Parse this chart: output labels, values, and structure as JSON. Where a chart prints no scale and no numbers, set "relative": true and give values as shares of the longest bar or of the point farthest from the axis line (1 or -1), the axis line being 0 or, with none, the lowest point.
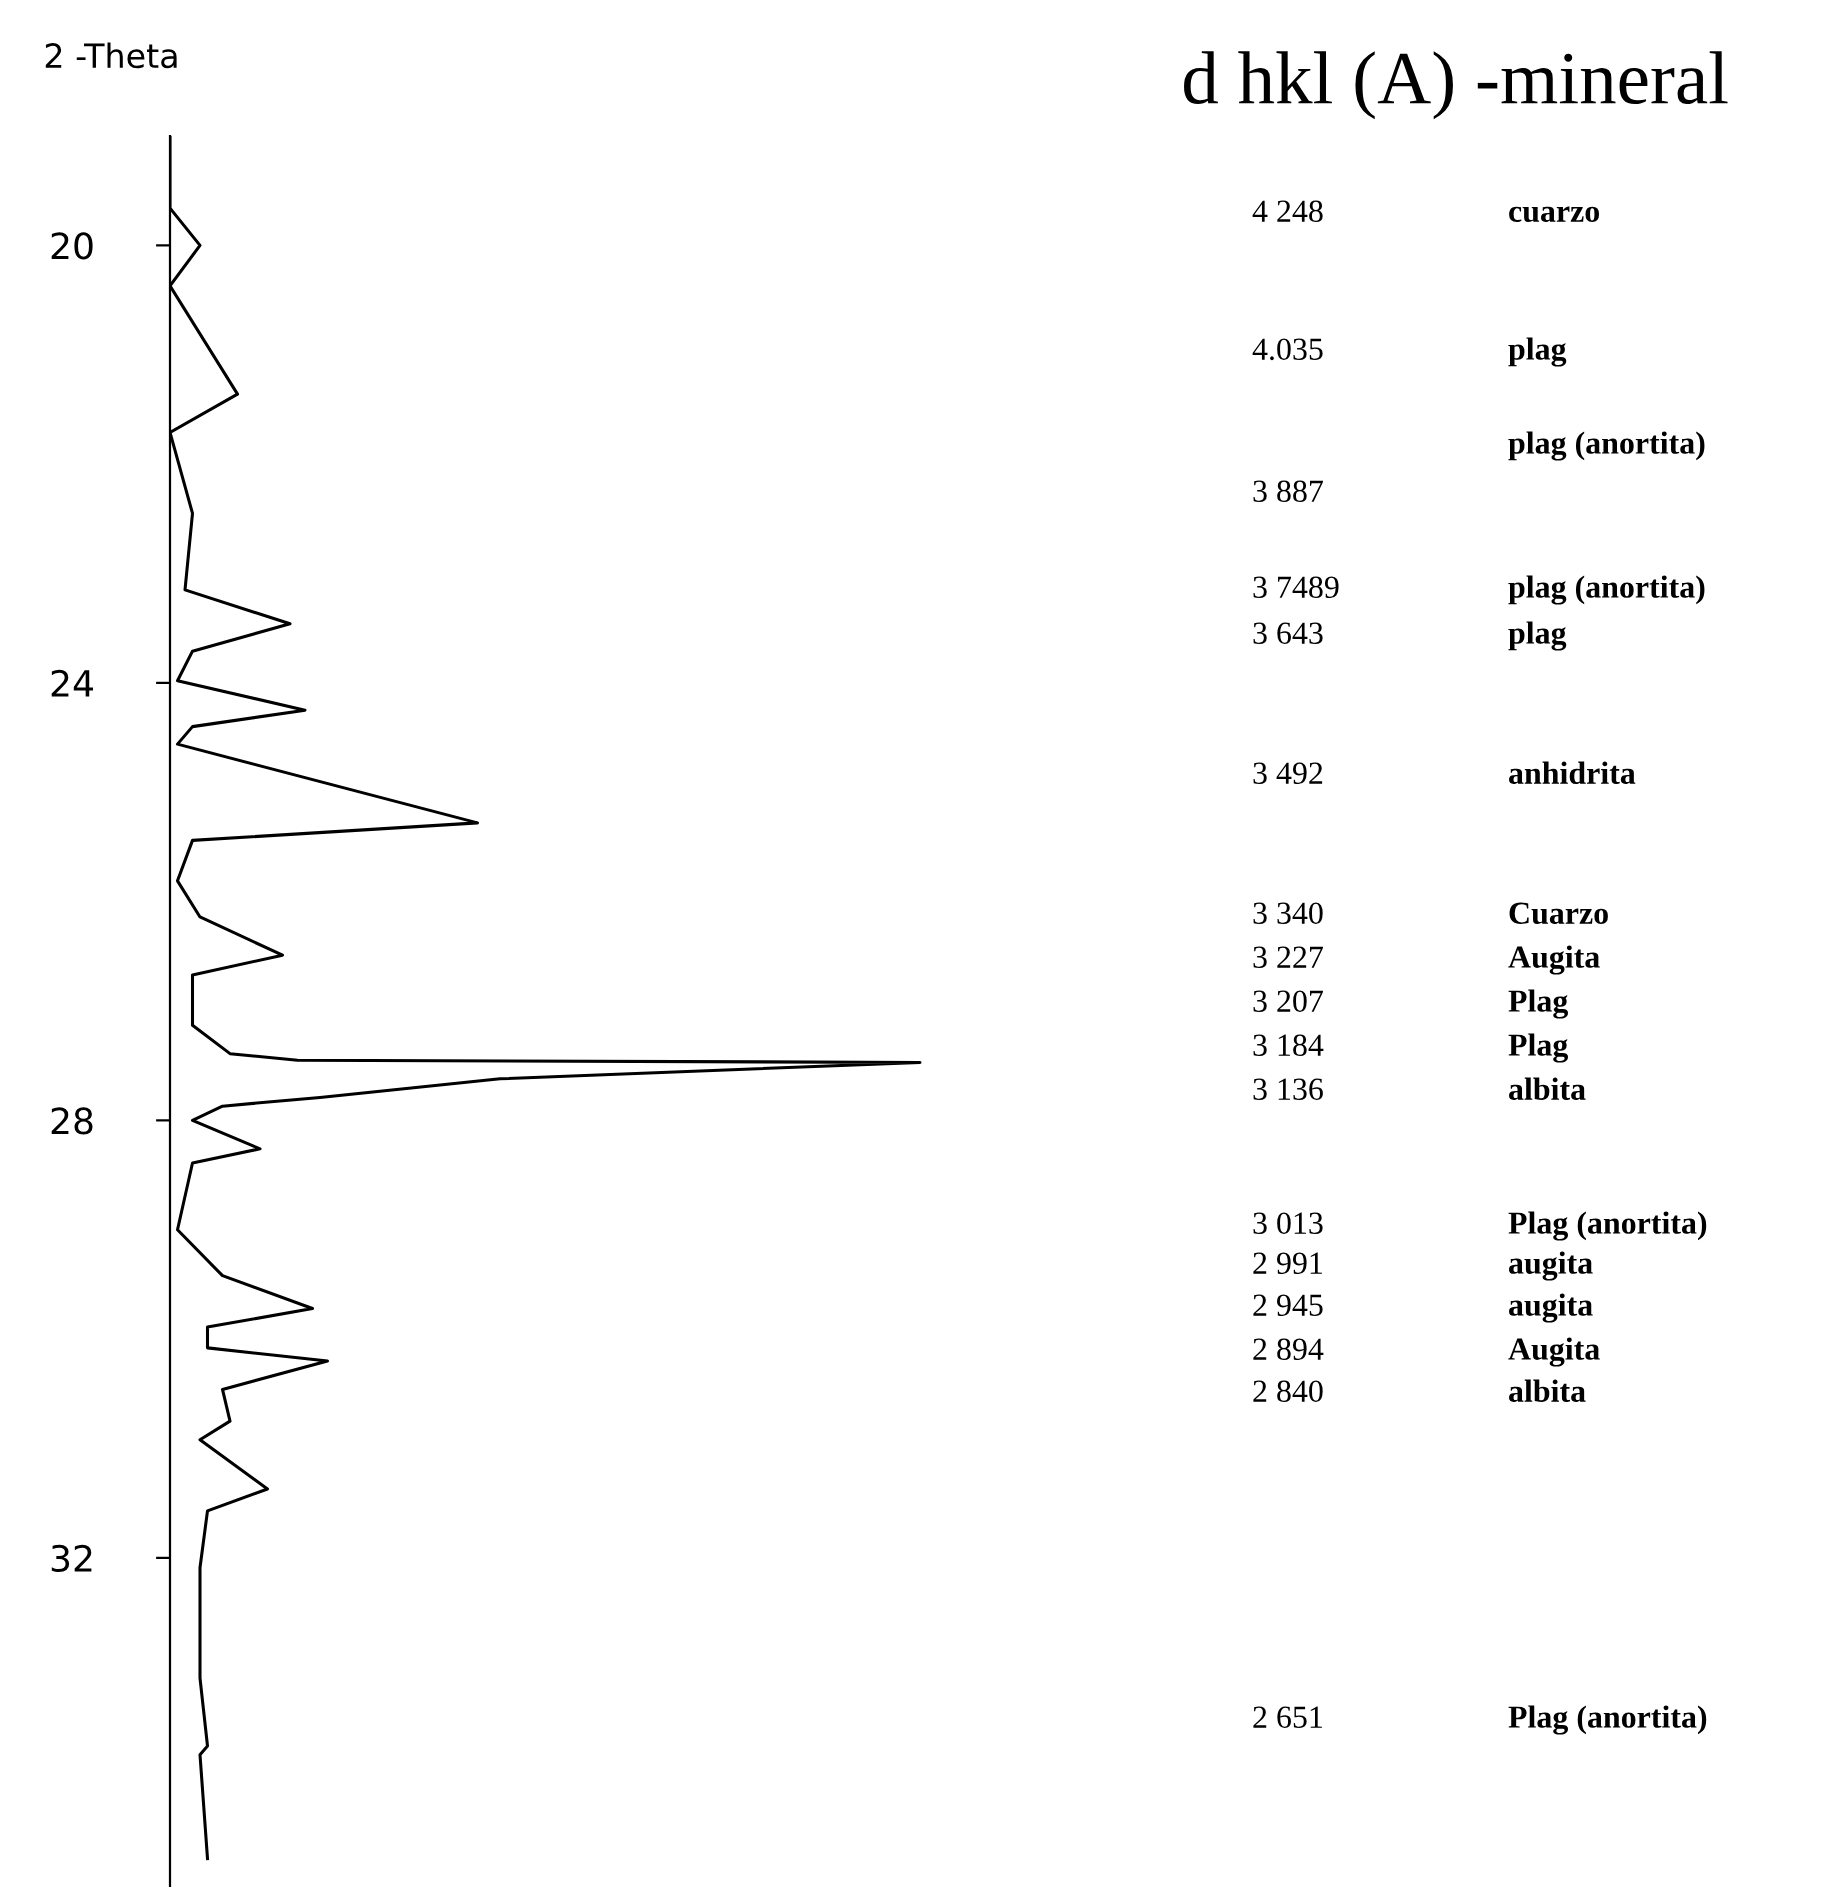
{
  "chart_data": {
    "type": "line",
    "relative": true,
    "orientation": "horizontal",
    "title": "d hkl (A) -mineral",
    "ylabel": "2 -Theta",
    "ylim": [
      35,
      19
    ],
    "yticks": [
      20,
      24,
      28,
      32
    ],
    "grid": false,
    "legend": false,
    "marker": "none",
    "line_style": "solid",
    "series": [
      {
        "color": "#000000",
        "x": [
          19.0,
          19.66,
          20.0,
          20.37,
          21.36,
          21.71,
          22.45,
          23.15,
          23.46,
          23.71,
          23.98,
          24.25,
          24.4,
          24.56,
          25.28,
          25.44,
          25.81,
          26.14,
          26.49,
          26.67,
          27.13,
          27.39,
          27.45,
          27.47,
          27.62,
          27.79,
          27.87,
          28.0,
          28.26,
          28.39,
          29.0,
          29.42,
          29.72,
          29.89,
          30.08,
          30.2,
          30.46,
          30.75,
          30.92,
          31.37,
          31.57,
          32.09,
          33.1,
          33.72,
          33.8,
          34.75
        ],
        "values": [
          0.0,
          0.0,
          0.04,
          0.0,
          0.09,
          0.0,
          0.03,
          0.02,
          0.16,
          0.03,
          0.01,
          0.18,
          0.03,
          0.01,
          0.41,
          0.03,
          0.01,
          0.04,
          0.15,
          0.03,
          0.03,
          0.08,
          0.17,
          1.0,
          0.44,
          0.2,
          0.07,
          0.03,
          0.12,
          0.03,
          0.01,
          0.07,
          0.19,
          0.05,
          0.05,
          0.21,
          0.07,
          0.08,
          0.04,
          0.13,
          0.05,
          0.04,
          0.04,
          0.05,
          0.04,
          0.05
        ]
      }
    ],
    "annotations": [
      "4 248",
      "cuarzo",
      "4.035",
      "plag",
      "plag (anortita)",
      "3 887",
      "3 7489",
      "plag (anortita)",
      "3 643",
      "plag",
      "3 492",
      "anhidrita",
      "3 340",
      "Cuarzo",
      "3 227",
      "Augita",
      "3 207",
      "Plag",
      "3 184",
      "Plag",
      "3 136",
      "albita",
      "3 013",
      "Plag (anortita)",
      "2 991",
      "augita",
      "2 945",
      "augita",
      "2 894",
      "Augita",
      "2 840",
      "albita",
      "2 651",
      "Plag (anortita)"
    ]
  }
}
